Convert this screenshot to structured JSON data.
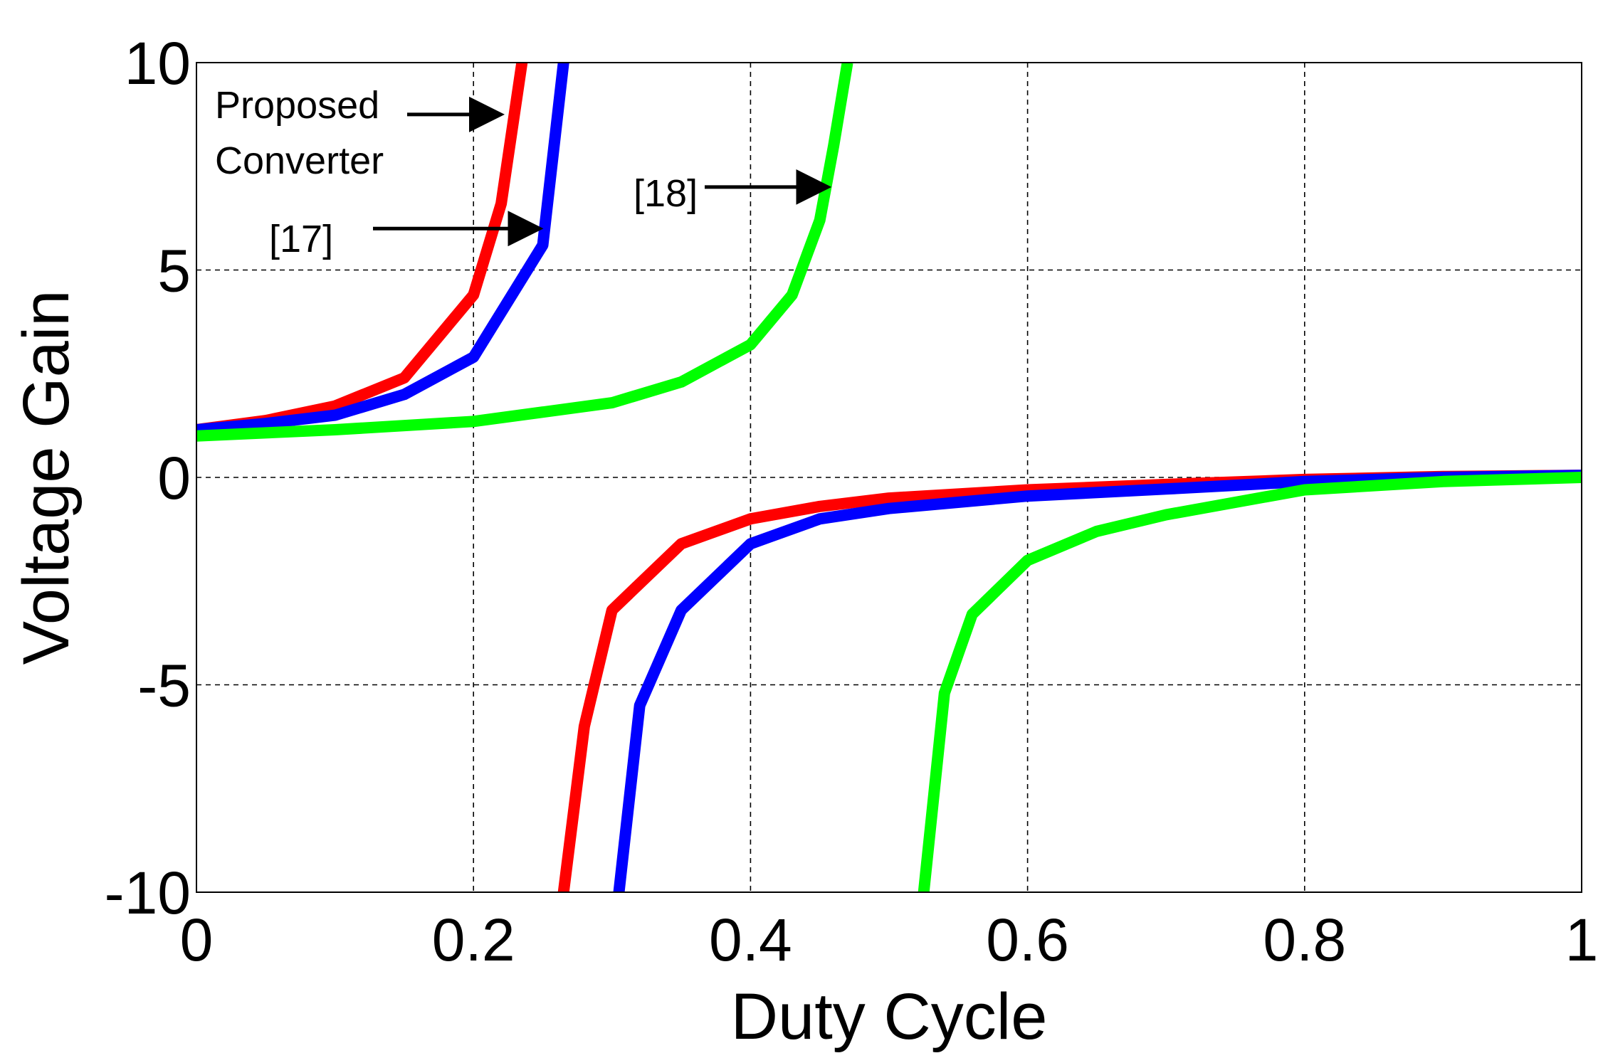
{
  "chart_data": {
    "type": "line",
    "title": "",
    "xlabel": "Duty Cycle",
    "ylabel": "Voltage Gain",
    "xlim": [
      0,
      1
    ],
    "ylim": [
      -10,
      10
    ],
    "grid": true,
    "xticks": [
      0,
      0.2,
      0.4,
      0.6,
      0.8,
      1
    ],
    "xtick_labels": [
      "0",
      "0.2",
      "0.4",
      "0.6",
      "0.8",
      "1"
    ],
    "yticks": [
      -10,
      -5,
      0,
      5,
      10
    ],
    "ytick_labels": [
      "-10",
      "-5",
      "0",
      "5",
      "10"
    ],
    "series": [
      {
        "name": "Proposed Converter",
        "color": "#ff0000",
        "x": [
          0,
          0.05,
          0.1,
          0.15,
          0.2,
          0.22,
          0.235,
          0.265,
          0.28,
          0.3,
          0.35,
          0.4,
          0.45,
          0.5,
          0.6,
          0.7,
          0.8,
          0.9,
          1.0
        ],
        "y": [
          1.15,
          1.37,
          1.72,
          2.4,
          4.4,
          6.6,
          10.0,
          -10.0,
          -6.0,
          -3.2,
          -1.6,
          -1.0,
          -0.7,
          -0.5,
          -0.3,
          -0.17,
          -0.05,
          0.02,
          0.05
        ]
      },
      {
        "name": "[17]",
        "color": "#0000ff",
        "x": [
          0,
          0.05,
          0.1,
          0.15,
          0.2,
          0.25,
          0.265,
          0.305,
          0.32,
          0.35,
          0.4,
          0.45,
          0.5,
          0.6,
          0.7,
          0.8,
          0.9,
          1.0
        ],
        "y": [
          1.15,
          1.3,
          1.5,
          2.0,
          2.9,
          5.6,
          10.0,
          -10.0,
          -5.5,
          -3.2,
          -1.6,
          -1.0,
          -0.75,
          -0.45,
          -0.28,
          -0.1,
          0.0,
          0.05
        ]
      },
      {
        "name": "[18]",
        "color": "#00ff00",
        "x": [
          0,
          0.1,
          0.2,
          0.3,
          0.35,
          0.4,
          0.43,
          0.45,
          0.46,
          0.47,
          0.525,
          0.54,
          0.56,
          0.6,
          0.65,
          0.7,
          0.8,
          0.9,
          1.0
        ],
        "y": [
          1.0,
          1.15,
          1.35,
          1.8,
          2.3,
          3.2,
          4.4,
          6.2,
          8.0,
          10.0,
          -10.0,
          -5.2,
          -3.3,
          -2.0,
          -1.3,
          -0.9,
          -0.3,
          -0.1,
          0.0
        ]
      }
    ],
    "annotations": [
      {
        "series": "Proposed Converter",
        "text_lines": [
          "Proposed",
          "Converter"
        ],
        "arrow_to": [
          0.222,
          8.75
        ]
      },
      {
        "series": "[17]",
        "text_lines": [
          "[17]"
        ],
        "arrow_to": [
          0.25,
          6.0
        ]
      },
      {
        "series": "[18]",
        "text_lines": [
          "[18]"
        ],
        "arrow_to": [
          0.458,
          7.0
        ]
      }
    ]
  }
}
